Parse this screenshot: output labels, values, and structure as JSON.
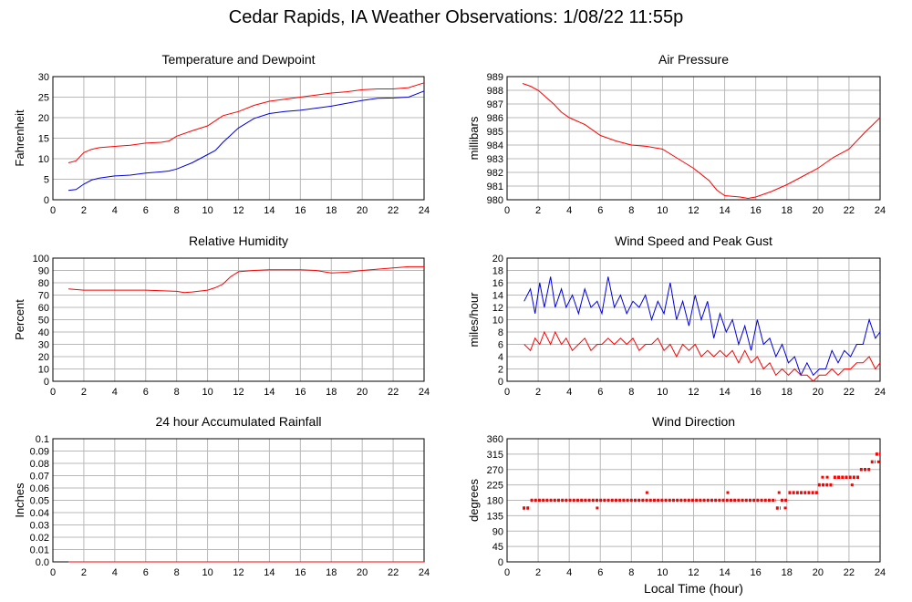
{
  "title": "Cedar Rapids, IA Weather Observations: 1/08/22 11:55p",
  "colors": {
    "red": "#ff0000",
    "blue": "#0000dd",
    "grid": "#b8b8b8"
  },
  "chart_data": [
    {
      "id": "temperature",
      "type": "line",
      "title": "Temperature and Dewpoint",
      "ylabel": "Fahrenheit",
      "xlabel": "",
      "xlim": [
        0,
        24
      ],
      "ylim": [
        0,
        30
      ],
      "xticks": [
        0,
        2,
        4,
        6,
        8,
        10,
        12,
        14,
        16,
        18,
        20,
        22,
        24
      ],
      "yticks": [
        0,
        5,
        10,
        15,
        20,
        25,
        30
      ],
      "grid": true,
      "series": [
        {
          "color": "#ff0000",
          "x": [
            1,
            1.5,
            2,
            2.5,
            3,
            4,
            5,
            6,
            7,
            7.5,
            8,
            9,
            10,
            11,
            12,
            13,
            14,
            15,
            16,
            17,
            18,
            19,
            20,
            21,
            22,
            23,
            24
          ],
          "y": [
            9,
            9.5,
            11.5,
            12.3,
            12.7,
            13,
            13.3,
            13.8,
            14,
            14.3,
            15.5,
            16.8,
            18,
            20.5,
            21.5,
            23,
            24,
            24.5,
            25,
            25.5,
            26,
            26.3,
            26.8,
            27,
            27,
            27.3,
            28.5
          ]
        },
        {
          "color": "#0000dd",
          "x": [
            1,
            1.5,
            2,
            2.5,
            3,
            4,
            5,
            6,
            7,
            7.5,
            8,
            9,
            10,
            10.5,
            11,
            12,
            13,
            14,
            15,
            16,
            17,
            18,
            19,
            20,
            21,
            22,
            23,
            24
          ],
          "y": [
            2.3,
            2.5,
            3.8,
            4.8,
            5.3,
            5.8,
            6,
            6.5,
            6.8,
            7,
            7.5,
            9,
            11,
            12,
            14,
            17.5,
            19.8,
            21,
            21.5,
            21.8,
            22.3,
            22.8,
            23.5,
            24.2,
            24.7,
            24.8,
            25,
            26.5
          ]
        }
      ]
    },
    {
      "id": "pressure",
      "type": "line",
      "title": "Air Pressure",
      "ylabel": "millibars",
      "xlabel": "",
      "xlim": [
        0,
        24
      ],
      "ylim": [
        980,
        989
      ],
      "xticks": [
        0,
        2,
        4,
        6,
        8,
        10,
        12,
        14,
        16,
        18,
        20,
        22,
        24
      ],
      "yticks": [
        980,
        981,
        982,
        983,
        984,
        985,
        986,
        987,
        988,
        989
      ],
      "grid": true,
      "series": [
        {
          "color": "#ff0000",
          "x": [
            1,
            1.5,
            2,
            2.5,
            3,
            3.5,
            4,
            5,
            6,
            7,
            8,
            9,
            10,
            11,
            12,
            13,
            13.5,
            14,
            15,
            15.5,
            16,
            17,
            18,
            19,
            20,
            21,
            22,
            23,
            24
          ],
          "y": [
            988.5,
            988.3,
            988,
            987.5,
            987,
            986.4,
            986,
            985.5,
            984.7,
            984.3,
            984,
            983.9,
            983.7,
            983,
            982.3,
            981.4,
            980.7,
            980.3,
            980.2,
            980.1,
            980.2,
            980.6,
            981.1,
            981.7,
            982.3,
            983.1,
            983.7,
            984.9,
            986
          ]
        }
      ]
    },
    {
      "id": "humidity",
      "type": "line",
      "title": "Relative Humidity",
      "ylabel": "Percent",
      "xlabel": "",
      "xlim": [
        0,
        24
      ],
      "ylim": [
        0,
        100
      ],
      "xticks": [
        0,
        2,
        4,
        6,
        8,
        10,
        12,
        14,
        16,
        18,
        20,
        22,
        24
      ],
      "yticks": [
        0,
        10,
        20,
        30,
        40,
        50,
        60,
        70,
        80,
        90,
        100
      ],
      "grid": true,
      "series": [
        {
          "color": "#ff0000",
          "x": [
            1,
            2,
            4,
            6,
            7,
            8,
            8.5,
            9,
            10,
            10.5,
            11,
            11.5,
            12,
            13,
            14,
            15,
            16,
            17,
            18,
            19,
            20,
            21,
            22,
            23,
            24
          ],
          "y": [
            75,
            74,
            74,
            74,
            73.5,
            73,
            72,
            72.5,
            74,
            76,
            79,
            85,
            89,
            90,
            90.5,
            90.5,
            90.5,
            90,
            88,
            88.5,
            90,
            91,
            92,
            93,
            93
          ]
        }
      ]
    },
    {
      "id": "wind",
      "type": "line",
      "title": "Wind Speed and Peak Gust",
      "ylabel": "miles/hour",
      "xlabel": "",
      "xlim": [
        0,
        24
      ],
      "ylim": [
        0,
        20
      ],
      "xticks": [
        0,
        2,
        4,
        6,
        8,
        10,
        12,
        14,
        16,
        18,
        20,
        22,
        24
      ],
      "yticks": [
        0,
        2,
        4,
        6,
        8,
        10,
        12,
        14,
        16,
        18,
        20
      ],
      "grid": true,
      "series": [
        {
          "color": "#0000dd",
          "x": [
            1.1,
            1.5,
            1.8,
            2.1,
            2.4,
            2.8,
            3.1,
            3.5,
            3.8,
            4.2,
            4.6,
            5,
            5.4,
            5.8,
            6.1,
            6.5,
            6.9,
            7.3,
            7.7,
            8.1,
            8.5,
            8.9,
            9.3,
            9.7,
            10.1,
            10.5,
            10.9,
            11.3,
            11.7,
            12.1,
            12.5,
            12.9,
            13.3,
            13.7,
            14.1,
            14.5,
            14.9,
            15.3,
            15.7,
            16.1,
            16.5,
            16.9,
            17.3,
            17.7,
            18.1,
            18.5,
            18.9,
            19.3,
            19.7,
            20.1,
            20.5,
            20.9,
            21.3,
            21.7,
            22.1,
            22.5,
            22.9,
            23.3,
            23.7,
            24
          ],
          "y": [
            13,
            15,
            11,
            16,
            12,
            17,
            12,
            15,
            12,
            14,
            11,
            15,
            12,
            13,
            11,
            17,
            12,
            14,
            11,
            13,
            12,
            14,
            10,
            13,
            11,
            16,
            10,
            13,
            9,
            14,
            10,
            13,
            7,
            11,
            8,
            10,
            6,
            9,
            5,
            10,
            6,
            7,
            4,
            6,
            3,
            4,
            1,
            3,
            1,
            2,
            2,
            5,
            3,
            5,
            4,
            6,
            6,
            10,
            7,
            8
          ]
        },
        {
          "color": "#ff0000",
          "x": [
            1.1,
            1.5,
            1.8,
            2.1,
            2.4,
            2.8,
            3.1,
            3.5,
            3.8,
            4.2,
            4.6,
            5,
            5.4,
            5.8,
            6.1,
            6.5,
            6.9,
            7.3,
            7.7,
            8.1,
            8.5,
            8.9,
            9.3,
            9.7,
            10.1,
            10.5,
            10.9,
            11.3,
            11.7,
            12.1,
            12.5,
            12.9,
            13.3,
            13.7,
            14.1,
            14.5,
            14.9,
            15.3,
            15.7,
            16.1,
            16.5,
            16.9,
            17.3,
            17.7,
            18.1,
            18.5,
            18.9,
            19.3,
            19.7,
            20.1,
            20.5,
            20.9,
            21.3,
            21.7,
            22.1,
            22.5,
            22.9,
            23.3,
            23.7,
            24
          ],
          "y": [
            6,
            5,
            7,
            6,
            8,
            6,
            8,
            6,
            7,
            5,
            6,
            7,
            5,
            6,
            6,
            7,
            6,
            7,
            6,
            7,
            5,
            6,
            6,
            7,
            5,
            6,
            4,
            6,
            5,
            6,
            4,
            5,
            4,
            5,
            4,
            5,
            3,
            5,
            3,
            4,
            2,
            3,
            1,
            2,
            1,
            2,
            1,
            1,
            0,
            1,
            1,
            2,
            1,
            2,
            2,
            3,
            3,
            4,
            2,
            3
          ]
        }
      ]
    },
    {
      "id": "rainfall",
      "type": "line",
      "title": "24 hour Accumulated Rainfall",
      "ylabel": "Inches",
      "xlabel": "",
      "xlim": [
        0,
        24
      ],
      "ylim": [
        0,
        0.1
      ],
      "xticks": [
        0,
        2,
        4,
        6,
        8,
        10,
        12,
        14,
        16,
        18,
        20,
        22,
        24
      ],
      "yticks": [
        "0.0",
        "0.01",
        "0.02",
        "0.03",
        "0.04",
        "0.05",
        "0.06",
        "0.07",
        "0.08",
        "0.09",
        "0.1"
      ],
      "grid": true,
      "series": [
        {
          "color": "#ff0000",
          "x": [
            1,
            24
          ],
          "y": [
            0,
            0
          ]
        }
      ]
    },
    {
      "id": "direction",
      "type": "scatter",
      "title": "Wind Direction",
      "ylabel": "degrees",
      "xlabel": "Local Time (hour)",
      "xlim": [
        0,
        24
      ],
      "ylim": [
        0,
        360
      ],
      "xticks": [
        0,
        2,
        4,
        6,
        8,
        10,
        12,
        14,
        16,
        18,
        20,
        22,
        24
      ],
      "yticks": [
        0,
        45,
        90,
        135,
        180,
        225,
        270,
        315,
        360
      ],
      "grid": true,
      "segments": [
        {
          "x0": 1.0,
          "x1": 1.5,
          "y": 157.5
        },
        {
          "x0": 1.5,
          "x1": 17.3,
          "y": 180
        },
        {
          "x0": 17.3,
          "x1": 17.6,
          "y": 157.5
        },
        {
          "x0": 17.6,
          "x1": 18.1,
          "y": 180
        },
        {
          "x0": 18.1,
          "x1": 20.0,
          "y": 202.5
        },
        {
          "x0": 20.0,
          "x1": 21.0,
          "y": 225
        },
        {
          "x0": 21.0,
          "x1": 22.7,
          "y": 247.5
        },
        {
          "x0": 22.7,
          "x1": 23.4,
          "y": 270
        },
        {
          "x0": 23.4,
          "x1": 23.7,
          "y": 292.5
        },
        {
          "x0": 23.7,
          "x1": 24.0,
          "y": 315
        }
      ],
      "points": [
        {
          "x": 5.8,
          "y": 157.5
        },
        {
          "x": 9.0,
          "y": 202.5
        },
        {
          "x": 14.2,
          "y": 202.5
        },
        {
          "x": 17.5,
          "y": 202.5
        },
        {
          "x": 17.9,
          "y": 157.5
        },
        {
          "x": 20.3,
          "y": 247.5
        },
        {
          "x": 20.6,
          "y": 247.5
        },
        {
          "x": 22.2,
          "y": 225
        },
        {
          "x": 23.9,
          "y": 292.5
        }
      ]
    }
  ]
}
